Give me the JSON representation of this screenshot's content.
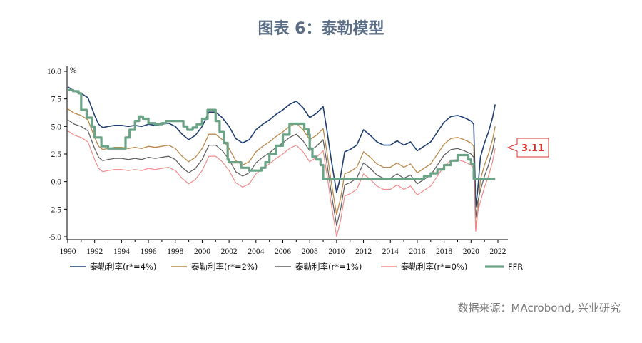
{
  "title": "图表 6：泰勒模型",
  "source": "数据来源：MAcrobond, 兴业研究",
  "chart_data": {
    "type": "line",
    "yunit": "%",
    "ylim": [
      -5.0,
      10.0
    ],
    "xlim": [
      1990,
      2022
    ],
    "yticks": [
      "10.0",
      "7.5",
      "5.0",
      "2.5",
      "0.0",
      "-2.5",
      "-5.0"
    ],
    "xticks": [
      "1990",
      "1992",
      "1994",
      "1996",
      "1998",
      "2000",
      "2002",
      "2004",
      "2006",
      "2008",
      "2010",
      "2012",
      "2014",
      "2016",
      "2018",
      "2020",
      "2022"
    ],
    "callout": "3.11",
    "callout_color": "#d9302c",
    "series": [
      {
        "name": "泰勒利率(r*=4%)",
        "color": "#1f3f70",
        "width": 1.6,
        "x": [
          1990,
          1990.5,
          1991,
          1991.5,
          1992,
          1992.3,
          1992.6,
          1993,
          1993.5,
          1994,
          1994.5,
          1995,
          1995.5,
          1996,
          1996.5,
          1997,
          1997.5,
          1998,
          1998.5,
          1999,
          1999.5,
          2000,
          2000.5,
          2001,
          2001.5,
          2002,
          2002.5,
          2003,
          2003.5,
          2004,
          2004.5,
          2005,
          2005.5,
          2006,
          2006.5,
          2007,
          2007.5,
          2008,
          2008.5,
          2009,
          2009.3,
          2009.6,
          2010,
          2010.3,
          2010.6,
          2011,
          2011.5,
          2012,
          2012.5,
          2013,
          2013.5,
          2014,
          2014.5,
          2015,
          2015.5,
          2016,
          2016.5,
          2017,
          2017.5,
          2018,
          2018.5,
          2019,
          2019.5,
          2020,
          2020.2,
          2020.35,
          2020.5,
          2020.7,
          2021,
          2021.3,
          2021.6,
          2021.8
        ],
        "y": [
          8.6,
          8.2,
          8.0,
          7.6,
          6.0,
          5.2,
          4.9,
          5.0,
          5.1,
          5.1,
          5.0,
          5.1,
          5.0,
          5.2,
          5.1,
          5.2,
          5.3,
          5.0,
          4.3,
          3.8,
          4.2,
          5.0,
          6.3,
          6.3,
          5.8,
          5.0,
          3.9,
          3.5,
          3.8,
          4.7,
          5.2,
          5.6,
          6.1,
          6.5,
          7.0,
          7.3,
          6.7,
          5.8,
          6.2,
          6.8,
          4.5,
          2.0,
          -1.0,
          0.5,
          2.7,
          2.9,
          3.3,
          4.7,
          4.2,
          3.6,
          3.3,
          3.3,
          3.7,
          3.3,
          3.6,
          2.8,
          3.2,
          3.6,
          4.5,
          5.4,
          5.9,
          6.0,
          5.8,
          5.5,
          5.2,
          -2.3,
          -0.8,
          2.2,
          3.5,
          4.5,
          5.8,
          7.0
        ]
      },
      {
        "name": "泰勒利率(r*=2%)",
        "color": "#b8894a",
        "width": 1.3,
        "x": [
          1990,
          1990.5,
          1991,
          1991.5,
          1992,
          1992.3,
          1992.6,
          1993,
          1993.5,
          1994,
          1994.5,
          1995,
          1995.5,
          1996,
          1996.5,
          1997,
          1997.5,
          1998,
          1998.5,
          1999,
          1999.5,
          2000,
          2000.5,
          2001,
          2001.5,
          2002,
          2002.5,
          2003,
          2003.5,
          2004,
          2004.5,
          2005,
          2005.5,
          2006,
          2006.5,
          2007,
          2007.5,
          2008,
          2008.5,
          2009,
          2009.3,
          2009.6,
          2010,
          2010.3,
          2010.6,
          2011,
          2011.5,
          2012,
          2012.5,
          2013,
          2013.5,
          2014,
          2014.5,
          2015,
          2015.5,
          2016,
          2016.5,
          2017,
          2017.5,
          2018,
          2018.5,
          2019,
          2019.5,
          2020,
          2020.2,
          2020.35,
          2020.5,
          2020.7,
          2021,
          2021.3,
          2021.6,
          2021.8
        ],
        "y": [
          6.6,
          6.2,
          6.0,
          5.6,
          4.0,
          3.2,
          2.9,
          3.0,
          3.1,
          3.1,
          3.0,
          3.1,
          3.0,
          3.2,
          3.1,
          3.2,
          3.3,
          3.0,
          2.3,
          1.8,
          2.2,
          3.0,
          4.3,
          4.3,
          3.8,
          3.0,
          1.9,
          1.5,
          1.8,
          2.7,
          3.2,
          3.6,
          4.1,
          4.5,
          5.0,
          5.3,
          4.7,
          3.8,
          4.2,
          4.8,
          2.5,
          0.0,
          -3.0,
          -1.5,
          0.7,
          0.9,
          1.3,
          2.7,
          2.2,
          1.6,
          1.3,
          1.3,
          1.7,
          1.3,
          1.6,
          0.8,
          1.2,
          1.6,
          2.5,
          3.4,
          3.9,
          4.0,
          3.8,
          3.5,
          3.2,
          -4.3,
          -2.8,
          0.2,
          1.5,
          2.5,
          3.8,
          5.0
        ]
      },
      {
        "name": "泰勒利率(r*=1%)",
        "color": "#5b5b5b",
        "width": 1.2,
        "x": [
          1990,
          1990.5,
          1991,
          1991.5,
          1992,
          1992.3,
          1992.6,
          1993,
          1993.5,
          1994,
          1994.5,
          1995,
          1995.5,
          1996,
          1996.5,
          1997,
          1997.5,
          1998,
          1998.5,
          1999,
          1999.5,
          2000,
          2000.5,
          2001,
          2001.5,
          2002,
          2002.5,
          2003,
          2003.5,
          2004,
          2004.5,
          2005,
          2005.5,
          2006,
          2006.5,
          2007,
          2007.5,
          2008,
          2008.5,
          2009,
          2009.3,
          2009.6,
          2010,
          2010.3,
          2010.6,
          2011,
          2011.5,
          2012,
          2012.5,
          2013,
          2013.5,
          2014,
          2014.5,
          2015,
          2015.5,
          2016,
          2016.5,
          2017,
          2017.5,
          2018,
          2018.5,
          2019,
          2019.5,
          2020,
          2020.2,
          2020.35,
          2020.5,
          2020.7,
          2021,
          2021.3,
          2021.6,
          2021.8
        ],
        "y": [
          5.6,
          5.2,
          5.0,
          4.6,
          3.0,
          2.2,
          1.9,
          2.0,
          2.1,
          2.1,
          2.0,
          2.1,
          2.0,
          2.2,
          2.1,
          2.2,
          2.3,
          2.0,
          1.3,
          0.8,
          1.2,
          2.0,
          3.3,
          3.3,
          2.8,
          2.0,
          0.9,
          0.5,
          0.8,
          1.7,
          2.2,
          2.6,
          3.1,
          3.5,
          4.0,
          4.3,
          3.7,
          2.8,
          3.2,
          3.8,
          1.5,
          -1.0,
          -4.0,
          -2.5,
          -0.3,
          -0.1,
          0.3,
          1.7,
          1.2,
          0.6,
          0.3,
          0.3,
          0.7,
          0.3,
          0.6,
          -0.2,
          0.2,
          0.6,
          1.5,
          2.4,
          2.9,
          3.0,
          2.8,
          2.5,
          2.2,
          -3.3,
          -1.8,
          -0.8,
          0.5,
          1.5,
          2.8,
          4.0
        ]
      },
      {
        "name": "泰勒利率(r*=0%)",
        "color": "#f08c8c",
        "width": 1.2,
        "x": [
          1990,
          1990.5,
          1991,
          1991.5,
          1992,
          1992.3,
          1992.6,
          1993,
          1993.5,
          1994,
          1994.5,
          1995,
          1995.5,
          1996,
          1996.5,
          1997,
          1997.5,
          1998,
          1998.5,
          1999,
          1999.5,
          2000,
          2000.5,
          2001,
          2001.5,
          2002,
          2002.5,
          2003,
          2003.5,
          2004,
          2004.5,
          2005,
          2005.5,
          2006,
          2006.5,
          2007,
          2007.5,
          2008,
          2008.5,
          2009,
          2009.3,
          2009.6,
          2010,
          2010.3,
          2010.6,
          2011,
          2011.5,
          2012,
          2012.5,
          2013,
          2013.5,
          2014,
          2014.5,
          2015,
          2015.5,
          2016,
          2016.5,
          2017,
          2017.5,
          2018,
          2018.5,
          2019,
          2019.5,
          2020,
          2020.2,
          2020.35,
          2020.5,
          2020.7,
          2021,
          2021.3,
          2021.6,
          2021.8
        ],
        "y": [
          4.6,
          4.2,
          4.0,
          3.6,
          2.0,
          1.2,
          0.9,
          1.0,
          1.1,
          1.1,
          1.0,
          1.1,
          1.0,
          1.2,
          1.1,
          1.2,
          1.3,
          1.0,
          0.3,
          -0.2,
          0.2,
          1.0,
          2.3,
          2.3,
          1.8,
          1.0,
          -0.1,
          -0.5,
          -0.2,
          0.7,
          1.2,
          1.6,
          2.1,
          2.5,
          3.0,
          3.3,
          2.7,
          1.8,
          2.2,
          2.8,
          0.5,
          -2.0,
          -5.0,
          -3.5,
          -1.3,
          -1.1,
          -0.7,
          0.7,
          0.2,
          -0.4,
          -0.7,
          -0.7,
          -0.3,
          -0.7,
          -0.4,
          -1.2,
          -0.8,
          -0.4,
          0.5,
          1.4,
          1.9,
          2.0,
          1.8,
          1.5,
          1.2,
          -4.5,
          -2.8,
          -1.8,
          -0.5,
          0.5,
          1.8,
          3.0
        ]
      },
      {
        "name": "FFR",
        "color": "#6aa386",
        "width": 3.2,
        "x": [
          1990,
          1990.4,
          1990.8,
          1991,
          1991.4,
          1991.8,
          1992,
          1992.5,
          1993,
          1993.5,
          1994,
          1994.3,
          1994.6,
          1995,
          1995.3,
          1995.6,
          1996,
          1996.5,
          1997,
          1997.3,
          1997.6,
          1998,
          1998.6,
          1998.9,
          1999.3,
          1999.6,
          2000,
          2000.4,
          2000.9,
          2001,
          2001.3,
          2001.6,
          2001.9,
          2002,
          2002.9,
          2003.5,
          2004.4,
          2004.7,
          2005,
          2005.5,
          2006,
          2006.5,
          2007,
          2007.6,
          2007.9,
          2008,
          2008.2,
          2008.5,
          2008.8,
          2009,
          2015.9,
          2016.5,
          2017,
          2017.5,
          2018,
          2018.5,
          2019,
          2019.5,
          2019.8,
          2020,
          2020.2,
          2021.8
        ],
        "y": [
          8.3,
          8.2,
          8.0,
          6.5,
          5.8,
          5.0,
          4.0,
          3.2,
          3.0,
          3.0,
          3.0,
          4.0,
          4.7,
          5.5,
          5.9,
          5.7,
          5.3,
          5.2,
          5.3,
          5.5,
          5.5,
          5.5,
          5.0,
          4.7,
          4.9,
          5.2,
          5.7,
          6.5,
          6.5,
          5.5,
          4.5,
          3.5,
          2.0,
          1.75,
          1.25,
          1.0,
          1.25,
          1.75,
          2.5,
          3.25,
          4.25,
          5.25,
          5.25,
          4.75,
          4.25,
          3.0,
          2.25,
          2.0,
          1.5,
          0.25,
          0.25,
          0.5,
          0.75,
          1.1,
          1.5,
          1.9,
          2.4,
          2.4,
          2.0,
          1.6,
          0.25,
          0.25
        ]
      }
    ]
  }
}
